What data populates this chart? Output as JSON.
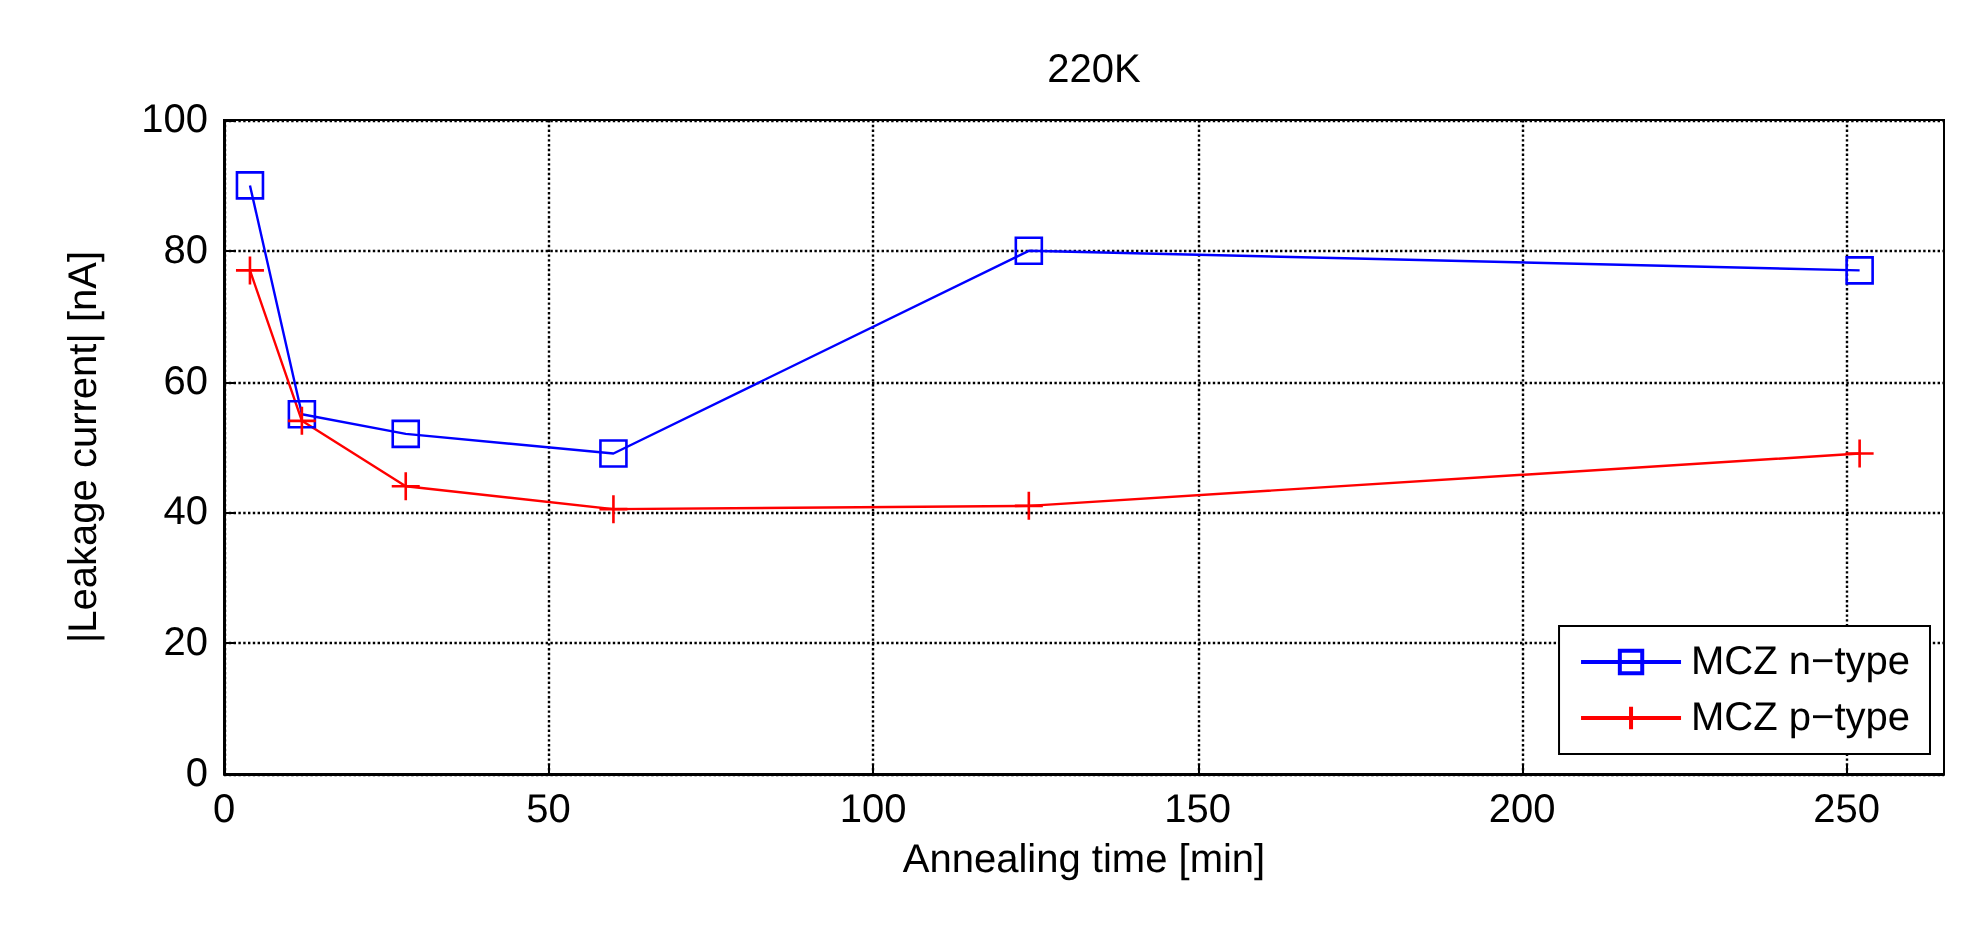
{
  "chart_data": {
    "type": "line",
    "title": "220K",
    "xlabel": "Annealing time [min]",
    "ylabel": "|Leakage current| [nA]",
    "x": [
      4,
      12,
      28,
      60,
      124,
      252
    ],
    "series": [
      {
        "name": "MCZ n−type",
        "color": "#0000ff",
        "marker": "square",
        "values": [
          90,
          55,
          52,
          49,
          80,
          77
        ]
      },
      {
        "name": "MCZ p−type",
        "color": "#ff0000",
        "marker": "cross",
        "values": [
          77,
          54,
          44,
          40.5,
          41,
          49
        ]
      }
    ],
    "xlim": [
      0,
      265
    ],
    "xticks": [
      0,
      50,
      100,
      150,
      200,
      250
    ],
    "ylim": [
      0,
      100
    ],
    "yticks": [
      0,
      20,
      40,
      60,
      80,
      100
    ],
    "grid": true,
    "legend": "bottom right",
    "line_style": "solid"
  }
}
